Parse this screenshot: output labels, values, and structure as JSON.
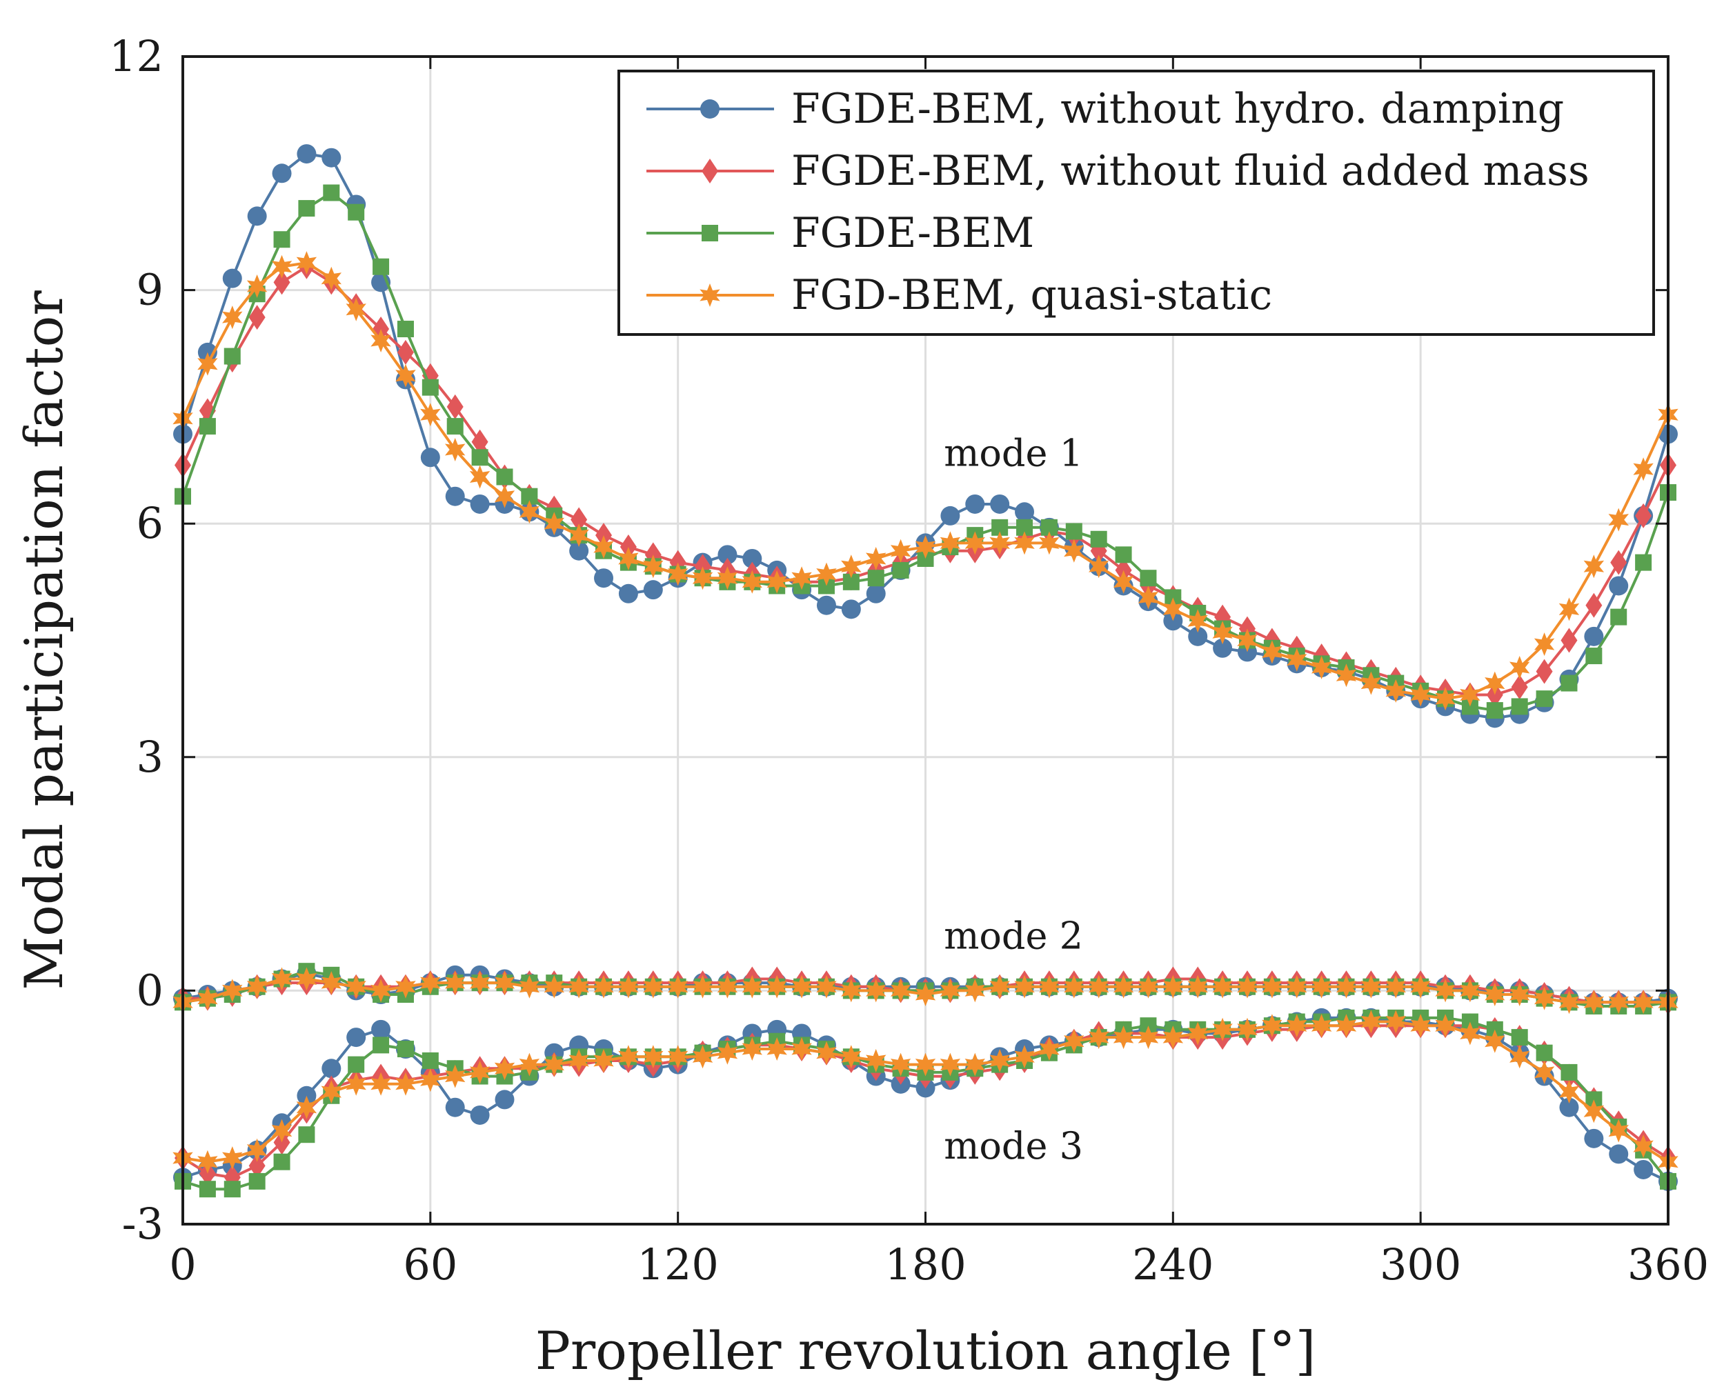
{
  "chart_data": {
    "type": "line",
    "xlabel": "Propeller revolution angle [°]",
    "ylabel": "Modal participation factor",
    "xlim": [
      0,
      360
    ],
    "ylim": [
      -3,
      12
    ],
    "xticks": [
      0,
      60,
      120,
      180,
      240,
      300,
      360
    ],
    "yticks": [
      -3,
      0,
      3,
      6,
      9,
      12
    ],
    "xtick_labels": [
      "0",
      "60",
      "120",
      "180",
      "240",
      "300",
      "360"
    ],
    "ytick_labels": [
      "-3",
      "0",
      "3",
      "6",
      "9",
      "12"
    ],
    "grid": true,
    "legend_position": "top-right",
    "x": [
      0,
      6,
      12,
      18,
      24,
      30,
      36,
      42,
      48,
      54,
      60,
      66,
      72,
      78,
      84,
      90,
      96,
      102,
      108,
      114,
      120,
      126,
      132,
      138,
      144,
      150,
      156,
      162,
      168,
      174,
      180,
      186,
      192,
      198,
      204,
      210,
      216,
      222,
      228,
      234,
      240,
      246,
      252,
      258,
      264,
      270,
      276,
      282,
      288,
      294,
      300,
      306,
      312,
      318,
      324,
      330,
      336,
      342,
      348,
      354,
      360
    ],
    "annotations": [
      {
        "text": "mode 1",
        "x": 200,
        "y": 6.9
      },
      {
        "text": "mode 2",
        "x": 200,
        "y": 0.7
      },
      {
        "text": "mode 3",
        "x": 200,
        "y": -2.0
      }
    ],
    "series": [
      {
        "name": "FGDE-BEM, without hydro. damping",
        "color": "#4e79a7",
        "marker": "circle",
        "modes": {
          "mode1": [
            7.15,
            8.2,
            9.15,
            9.95,
            10.5,
            10.75,
            10.7,
            10.1,
            9.1,
            7.85,
            6.85,
            6.35,
            6.25,
            6.25,
            6.15,
            5.95,
            5.65,
            5.3,
            5.1,
            5.15,
            5.3,
            5.5,
            5.6,
            5.55,
            5.4,
            5.15,
            4.95,
            4.9,
            5.1,
            5.4,
            5.75,
            6.1,
            6.25,
            6.25,
            6.15,
            5.95,
            5.7,
            5.45,
            5.2,
            5.0,
            4.75,
            4.55,
            4.4,
            4.35,
            4.3,
            4.2,
            4.15,
            4.1,
            4.0,
            3.85,
            3.75,
            3.65,
            3.55,
            3.5,
            3.55,
            3.7,
            4.0,
            4.55,
            5.2,
            6.1,
            7.15
          ],
          "mode2": [
            -0.1,
            -0.05,
            0.0,
            0.05,
            0.15,
            0.22,
            0.15,
            0.0,
            -0.05,
            0.0,
            0.1,
            0.2,
            0.2,
            0.15,
            0.1,
            0.05,
            0.05,
            0.05,
            0.05,
            0.05,
            0.05,
            0.1,
            0.1,
            0.1,
            0.1,
            0.05,
            0.05,
            0.05,
            0.05,
            0.05,
            0.05,
            0.05,
            0.05,
            0.05,
            0.05,
            0.05,
            0.05,
            0.05,
            0.05,
            0.05,
            0.05,
            0.05,
            0.05,
            0.05,
            0.05,
            0.05,
            0.05,
            0.05,
            0.05,
            0.05,
            0.05,
            0.05,
            0.0,
            0.0,
            0.0,
            -0.05,
            -0.1,
            -0.15,
            -0.15,
            -0.15,
            -0.1
          ],
          "mode3": [
            -2.4,
            -2.3,
            -2.25,
            -2.05,
            -1.7,
            -1.35,
            -1.0,
            -0.6,
            -0.5,
            -0.75,
            -1.05,
            -1.5,
            -1.6,
            -1.4,
            -1.1,
            -0.8,
            -0.7,
            -0.75,
            -0.9,
            -1.0,
            -0.95,
            -0.8,
            -0.7,
            -0.55,
            -0.5,
            -0.55,
            -0.7,
            -0.9,
            -1.1,
            -1.2,
            -1.25,
            -1.15,
            -1.0,
            -0.85,
            -0.75,
            -0.7,
            -0.65,
            -0.6,
            -0.55,
            -0.5,
            -0.5,
            -0.55,
            -0.55,
            -0.5,
            -0.45,
            -0.4,
            -0.35,
            -0.35,
            -0.35,
            -0.4,
            -0.4,
            -0.45,
            -0.5,
            -0.6,
            -0.8,
            -1.1,
            -1.5,
            -1.9,
            -2.1,
            -2.3,
            -2.45
          ]
        }
      },
      {
        "name": "FGDE-BEM, without fluid added mass",
        "color": "#e15759",
        "marker": "diamond",
        "modes": {
          "mode1": [
            6.75,
            7.45,
            8.1,
            8.65,
            9.1,
            9.3,
            9.1,
            8.8,
            8.5,
            8.2,
            7.9,
            7.5,
            7.05,
            6.6,
            6.35,
            6.2,
            6.05,
            5.85,
            5.7,
            5.6,
            5.5,
            5.45,
            5.4,
            5.35,
            5.3,
            5.25,
            5.25,
            5.3,
            5.4,
            5.5,
            5.6,
            5.65,
            5.65,
            5.7,
            5.8,
            5.9,
            5.85,
            5.65,
            5.4,
            5.2,
            5.05,
            4.9,
            4.8,
            4.65,
            4.5,
            4.4,
            4.3,
            4.2,
            4.1,
            4.0,
            3.9,
            3.85,
            3.8,
            3.8,
            3.9,
            4.1,
            4.5,
            4.95,
            5.5,
            6.1,
            6.75
          ],
          "mode2": [
            -0.1,
            -0.1,
            -0.05,
            0.05,
            0.1,
            0.1,
            0.1,
            0.05,
            0.05,
            0.05,
            0.1,
            0.1,
            0.1,
            0.1,
            0.1,
            0.1,
            0.1,
            0.1,
            0.1,
            0.1,
            0.1,
            0.1,
            0.1,
            0.15,
            0.15,
            0.1,
            0.1,
            0.05,
            0.05,
            0.0,
            0.0,
            0.0,
            0.05,
            0.05,
            0.1,
            0.1,
            0.1,
            0.1,
            0.1,
            0.1,
            0.15,
            0.15,
            0.1,
            0.1,
            0.1,
            0.1,
            0.1,
            0.1,
            0.1,
            0.1,
            0.1,
            0.05,
            0.05,
            0.0,
            0.0,
            -0.05,
            -0.1,
            -0.15,
            -0.15,
            -0.15,
            -0.15
          ],
          "mode3": [
            -2.15,
            -2.35,
            -2.4,
            -2.25,
            -1.95,
            -1.55,
            -1.25,
            -1.15,
            -1.1,
            -1.15,
            -1.1,
            -1.05,
            -1.0,
            -1.0,
            -1.0,
            -0.95,
            -0.95,
            -0.9,
            -0.9,
            -0.95,
            -0.9,
            -0.8,
            -0.75,
            -0.7,
            -0.7,
            -0.75,
            -0.8,
            -0.9,
            -1.0,
            -1.05,
            -1.1,
            -1.1,
            -1.05,
            -1.0,
            -0.9,
            -0.75,
            -0.65,
            -0.55,
            -0.55,
            -0.55,
            -0.6,
            -0.6,
            -0.6,
            -0.55,
            -0.5,
            -0.5,
            -0.45,
            -0.45,
            -0.45,
            -0.45,
            -0.45,
            -0.45,
            -0.45,
            -0.5,
            -0.6,
            -0.8,
            -1.1,
            -1.4,
            -1.7,
            -1.95,
            -2.15
          ]
        }
      },
      {
        "name": "FGDE-BEM",
        "color": "#59a14f",
        "marker": "square",
        "modes": {
          "mode1": [
            6.35,
            7.25,
            8.15,
            8.95,
            9.65,
            10.05,
            10.25,
            10.0,
            9.3,
            8.5,
            7.75,
            7.25,
            6.85,
            6.6,
            6.35,
            6.1,
            5.85,
            5.65,
            5.5,
            5.45,
            5.35,
            5.3,
            5.25,
            5.25,
            5.2,
            5.2,
            5.2,
            5.25,
            5.3,
            5.4,
            5.55,
            5.7,
            5.85,
            5.95,
            5.95,
            5.95,
            5.9,
            5.8,
            5.6,
            5.3,
            5.05,
            4.85,
            4.65,
            4.5,
            4.4,
            4.3,
            4.2,
            4.15,
            4.05,
            3.95,
            3.85,
            3.75,
            3.65,
            3.6,
            3.65,
            3.75,
            3.95,
            4.3,
            4.8,
            5.5,
            6.4
          ],
          "mode2": [
            -0.15,
            -0.1,
            -0.05,
            0.05,
            0.15,
            0.25,
            0.2,
            0.05,
            -0.05,
            -0.05,
            0.05,
            0.1,
            0.1,
            0.1,
            0.1,
            0.1,
            0.05,
            0.05,
            0.05,
            0.05,
            0.05,
            0.05,
            0.05,
            0.05,
            0.05,
            0.05,
            0.05,
            0.0,
            0.0,
            0.0,
            0.0,
            0.0,
            0.05,
            0.05,
            0.05,
            0.05,
            0.05,
            0.05,
            0.05,
            0.05,
            0.05,
            0.05,
            0.05,
            0.05,
            0.05,
            0.05,
            0.05,
            0.05,
            0.05,
            0.05,
            0.05,
            0.0,
            0.0,
            -0.05,
            -0.05,
            -0.1,
            -0.15,
            -0.2,
            -0.2,
            -0.2,
            -0.15
          ],
          "mode3": [
            -2.45,
            -2.55,
            -2.55,
            -2.45,
            -2.2,
            -1.85,
            -1.35,
            -0.95,
            -0.7,
            -0.75,
            -0.9,
            -1.0,
            -1.1,
            -1.1,
            -1.05,
            -0.95,
            -0.85,
            -0.85,
            -0.85,
            -0.85,
            -0.85,
            -0.8,
            -0.75,
            -0.7,
            -0.65,
            -0.7,
            -0.75,
            -0.85,
            -0.95,
            -1.0,
            -1.05,
            -1.05,
            -1.0,
            -0.95,
            -0.9,
            -0.8,
            -0.7,
            -0.6,
            -0.5,
            -0.45,
            -0.5,
            -0.5,
            -0.5,
            -0.5,
            -0.45,
            -0.4,
            -0.4,
            -0.35,
            -0.35,
            -0.35,
            -0.35,
            -0.35,
            -0.4,
            -0.5,
            -0.6,
            -0.8,
            -1.05,
            -1.4,
            -1.75,
            -2.05,
            -2.45
          ]
        }
      },
      {
        "name": "FGD-BEM, quasi-static",
        "color": "#f28e2b",
        "marker": "star",
        "modes": {
          "mode1": [
            7.35,
            8.05,
            8.65,
            9.05,
            9.3,
            9.35,
            9.15,
            8.75,
            8.35,
            7.9,
            7.4,
            6.95,
            6.6,
            6.35,
            6.15,
            6.0,
            5.85,
            5.7,
            5.55,
            5.45,
            5.35,
            5.3,
            5.3,
            5.25,
            5.25,
            5.3,
            5.35,
            5.45,
            5.55,
            5.65,
            5.7,
            5.75,
            5.75,
            5.75,
            5.75,
            5.75,
            5.65,
            5.45,
            5.25,
            5.05,
            4.9,
            4.75,
            4.6,
            4.5,
            4.35,
            4.25,
            4.15,
            4.05,
            3.95,
            3.85,
            3.8,
            3.75,
            3.8,
            3.95,
            4.15,
            4.45,
            4.9,
            5.45,
            6.05,
            6.7,
            7.4
          ],
          "mode2": [
            -0.15,
            -0.1,
            0.0,
            0.05,
            0.15,
            0.15,
            0.1,
            0.05,
            0.0,
            0.05,
            0.1,
            0.1,
            0.1,
            0.1,
            0.05,
            0.05,
            0.05,
            0.05,
            0.05,
            0.05,
            0.05,
            0.05,
            0.05,
            0.05,
            0.05,
            0.05,
            0.05,
            0.0,
            0.0,
            0.0,
            -0.05,
            0.0,
            0.0,
            0.05,
            0.05,
            0.05,
            0.05,
            0.05,
            0.05,
            0.05,
            0.05,
            0.05,
            0.05,
            0.05,
            0.05,
            0.05,
            0.05,
            0.05,
            0.05,
            0.05,
            0.05,
            0.0,
            0.0,
            -0.05,
            -0.05,
            -0.1,
            -0.15,
            -0.15,
            -0.15,
            -0.15,
            -0.15
          ],
          "mode3": [
            -2.15,
            -2.2,
            -2.15,
            -2.05,
            -1.8,
            -1.5,
            -1.3,
            -1.2,
            -1.2,
            -1.2,
            -1.15,
            -1.1,
            -1.05,
            -1.0,
            -0.95,
            -0.95,
            -0.9,
            -0.9,
            -0.85,
            -0.85,
            -0.85,
            -0.85,
            -0.8,
            -0.75,
            -0.75,
            -0.75,
            -0.8,
            -0.85,
            -0.9,
            -0.95,
            -0.95,
            -0.95,
            -0.95,
            -0.9,
            -0.85,
            -0.75,
            -0.65,
            -0.6,
            -0.6,
            -0.6,
            -0.6,
            -0.55,
            -0.5,
            -0.5,
            -0.45,
            -0.45,
            -0.45,
            -0.45,
            -0.4,
            -0.4,
            -0.45,
            -0.45,
            -0.55,
            -0.65,
            -0.85,
            -1.05,
            -1.3,
            -1.55,
            -1.8,
            -2.0,
            -2.2
          ]
        }
      }
    ]
  }
}
